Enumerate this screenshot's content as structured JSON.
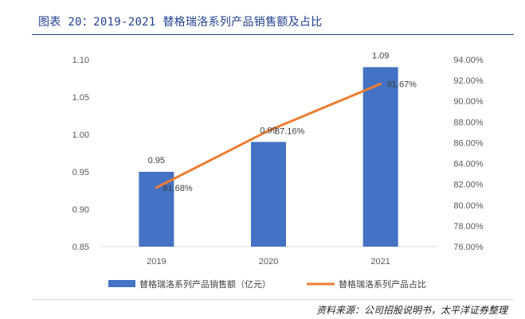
{
  "title": "图表 20：2019-2021 替格瑞洛系列产品销售额及占比",
  "source": "资料来源：公司招股说明书，太平洋证券整理",
  "colors": {
    "bar": "#4472c4",
    "line": "#ed7d31",
    "title": "#1f3f8f"
  },
  "chart_data": {
    "type": "bar",
    "categories": [
      "2019",
      "2020",
      "2021"
    ],
    "series": [
      {
        "name": "替格瑞洛系列产品销售额（亿元）",
        "kind": "bar",
        "axis": "left",
        "values": [
          0.95,
          0.99,
          1.09
        ],
        "labels": [
          "0.95",
          "0.99",
          "1.09"
        ]
      },
      {
        "name": "替格瑞洛系列产品占比",
        "kind": "line",
        "axis": "right",
        "values": [
          81.68,
          87.16,
          91.67
        ],
        "labels": [
          "81.68%",
          "87.16%",
          "91.67%"
        ]
      }
    ],
    "ylim_left": [
      0.85,
      1.1
    ],
    "yticks_left": [
      "0.85",
      "0.90",
      "0.95",
      "1.00",
      "1.05",
      "1.10"
    ],
    "ylim_right": [
      76.0,
      94.0
    ],
    "yticks_right": [
      "76.00%",
      "78.00%",
      "80.00%",
      "82.00%",
      "84.00%",
      "86.00%",
      "88.00%",
      "90.00%",
      "92.00%",
      "94.00%"
    ],
    "grid": false,
    "legend": "bottom"
  }
}
